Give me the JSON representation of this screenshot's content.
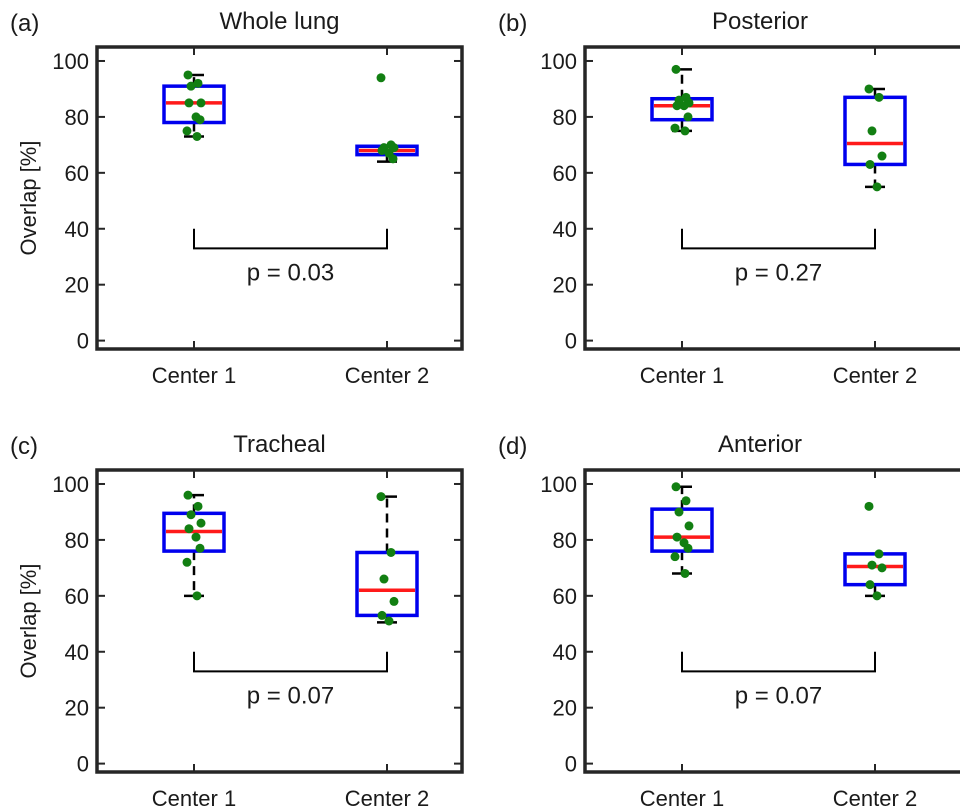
{
  "chart_data": [
    {
      "type": "box",
      "panel": "(a)",
      "title": "Whole lung",
      "ylabel": "Overlap [%]",
      "categories": [
        "Center 1",
        "Center 2"
      ],
      "ylim": [
        -3,
        105
      ],
      "yticks": [
        0,
        20,
        40,
        60,
        80,
        100
      ],
      "boxes": [
        {
          "category": "Center 1",
          "q1": 78,
          "median": 85,
          "q3": 91,
          "whisker_low": 73,
          "whisker_high": 95
        },
        {
          "category": "Center 2",
          "q1": 66.5,
          "median": 68,
          "q3": 69.5,
          "whisker_low": 64,
          "whisker_high": 69.5
        }
      ],
      "points": [
        {
          "category": "Center 1",
          "values": [
            95,
            92,
            91,
            85,
            85,
            80,
            79,
            75,
            73
          ]
        },
        {
          "category": "Center 2",
          "values": [
            94,
            70,
            69,
            69,
            68,
            67,
            65
          ]
        }
      ],
      "annotation": "p = 0.03"
    },
    {
      "type": "box",
      "panel": "(b)",
      "title": "Posterior",
      "ylabel": "",
      "categories": [
        "Center 1",
        "Center 2"
      ],
      "ylim": [
        -3,
        105
      ],
      "yticks": [
        0,
        20,
        40,
        60,
        80,
        100
      ],
      "boxes": [
        {
          "category": "Center 1",
          "q1": 79,
          "median": 84,
          "q3": 86.5,
          "whisker_low": 75,
          "whisker_high": 97
        },
        {
          "category": "Center 2",
          "q1": 63,
          "median": 70.5,
          "q3": 87,
          "whisker_low": 55,
          "whisker_high": 90
        }
      ],
      "points": [
        {
          "category": "Center 1",
          "values": [
            97,
            87,
            86,
            85,
            84,
            84,
            80,
            76,
            75
          ]
        },
        {
          "category": "Center 2",
          "values": [
            90,
            87,
            75,
            66,
            63,
            55
          ]
        }
      ],
      "annotation": "p = 0.27"
    },
    {
      "type": "box",
      "panel": "(c)",
      "title": "Tracheal",
      "ylabel": "Overlap [%]",
      "categories": [
        "Center 1",
        "Center 2"
      ],
      "ylim": [
        -3,
        105
      ],
      "yticks": [
        0,
        20,
        40,
        60,
        80,
        100
      ],
      "boxes": [
        {
          "category": "Center 1",
          "q1": 76,
          "median": 83,
          "q3": 89.5,
          "whisker_low": 60,
          "whisker_high": 96
        },
        {
          "category": "Center 2",
          "q1": 53,
          "median": 62,
          "q3": 75.5,
          "whisker_low": 50.5,
          "whisker_high": 95.5
        }
      ],
      "points": [
        {
          "category": "Center 1",
          "values": [
            96,
            92,
            89,
            86,
            84,
            81,
            77,
            72,
            60
          ]
        },
        {
          "category": "Center 2",
          "values": [
            95.5,
            75.5,
            66,
            58,
            53,
            51
          ]
        }
      ],
      "annotation": "p = 0.07"
    },
    {
      "type": "box",
      "panel": "(d)",
      "title": "Anterior",
      "ylabel": "",
      "categories": [
        "Center 1",
        "Center 2"
      ],
      "ylim": [
        -3,
        105
      ],
      "yticks": [
        0,
        20,
        40,
        60,
        80,
        100
      ],
      "boxes": [
        {
          "category": "Center 1",
          "q1": 76,
          "median": 81,
          "q3": 91,
          "whisker_low": 68,
          "whisker_high": 99
        },
        {
          "category": "Center 2",
          "q1": 64,
          "median": 70.5,
          "q3": 75,
          "whisker_low": 60,
          "whisker_high": 75
        }
      ],
      "points": [
        {
          "category": "Center 1",
          "values": [
            99,
            94,
            90,
            85,
            81,
            79,
            77,
            74,
            68
          ]
        },
        {
          "category": "Center 2",
          "values": [
            92,
            75,
            71,
            70,
            64,
            60
          ]
        }
      ],
      "annotation": "p = 0.07"
    }
  ],
  "colors": {
    "box": "#0000ee",
    "median": "#ff1a1a",
    "points": "#127f12",
    "whisker": "#000000",
    "axes": "#262626"
  }
}
